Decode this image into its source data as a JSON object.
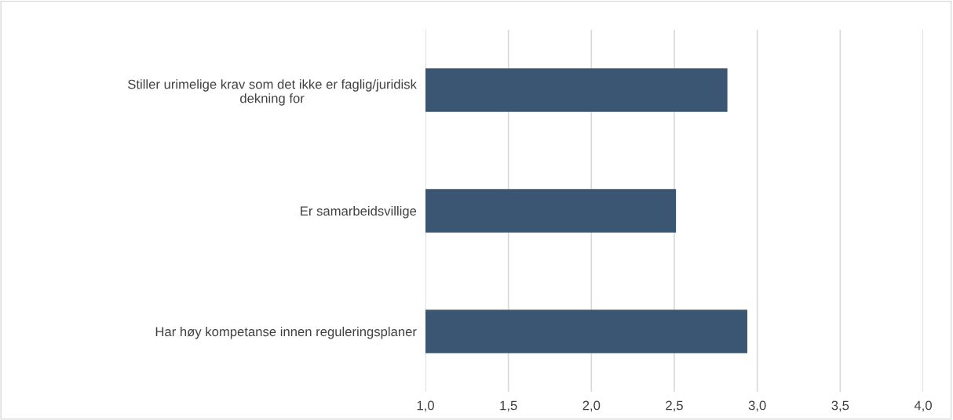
{
  "chart_data": {
    "type": "bar",
    "orientation": "horizontal",
    "categories": [
      "Stiller urimelige krav som det ikke er faglig/juridisk\ndekning for",
      "Er samarbeidsvillige",
      "Har høy kompetanse innen reguleringsplaner"
    ],
    "values": [
      2.82,
      2.51,
      2.94
    ],
    "color": "#3a5673",
    "xlim": [
      1.0,
      4.0
    ],
    "xticks": [
      {
        "value": 1.0,
        "label": "1,0"
      },
      {
        "value": 1.5,
        "label": "1,5"
      },
      {
        "value": 2.0,
        "label": "2,0"
      },
      {
        "value": 2.5,
        "label": "2,5"
      },
      {
        "value": 3.0,
        "label": "3,0"
      },
      {
        "value": 3.5,
        "label": "3,5"
      },
      {
        "value": 4.0,
        "label": "4,0"
      }
    ],
    "grid": "x"
  }
}
